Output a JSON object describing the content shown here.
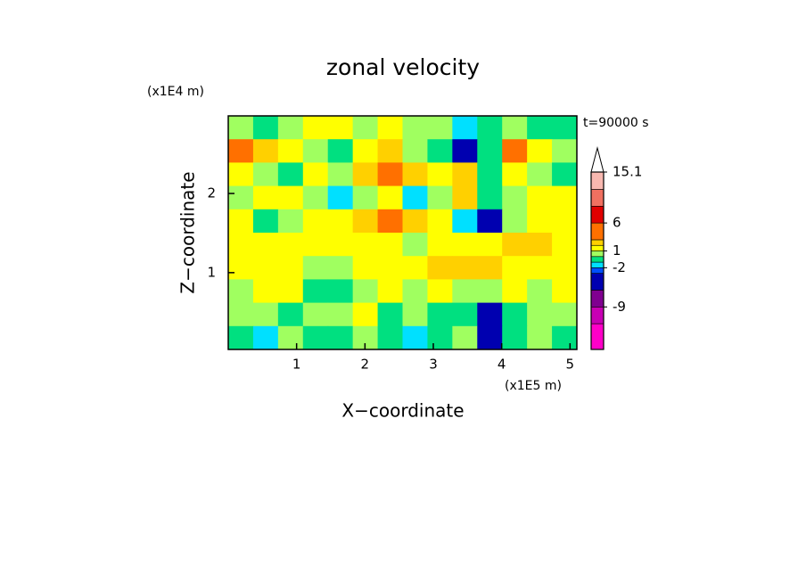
{
  "chart_data": {
    "type": "contour",
    "title": "zonal velocity",
    "x_label": "X−coordinate",
    "y_label": "Z−coordinate",
    "x_unit": "(x1E5 m)",
    "y_unit": "(x1E4 m)",
    "time_label": "t=90000 s",
    "xlim": [
      0,
      5.1
    ],
    "ylim": [
      0.03,
      2.98
    ],
    "xticks": [
      1,
      2,
      3,
      4,
      5
    ],
    "yticks": [
      1,
      2
    ],
    "z": [
      [
        0,
        -1,
        0,
        1,
        1,
        0.5,
        1,
        0.5,
        0,
        -1.5,
        -1,
        0,
        -1,
        -1
      ],
      [
        3,
        2,
        1,
        0,
        -1,
        1,
        2,
        0.5,
        -1,
        -5,
        -1,
        3,
        1,
        0
      ],
      [
        1,
        0,
        -1,
        1,
        0,
        2,
        3,
        2,
        1,
        2.5,
        -1,
        1,
        0,
        -1
      ],
      [
        0,
        1,
        1,
        0,
        -1.5,
        0,
        1,
        -1.5,
        0,
        2,
        -1,
        0,
        1,
        1
      ],
      [
        1,
        -1,
        0,
        1,
        1,
        2.5,
        3,
        2,
        1,
        -2,
        -5,
        0,
        1,
        1
      ],
      [
        1,
        1,
        1,
        1,
        1,
        1,
        1,
        0,
        1,
        1,
        1,
        2,
        2,
        1
      ],
      [
        1,
        1,
        1,
        0,
        0,
        1,
        1,
        1,
        2,
        2,
        2,
        1,
        1,
        1
      ],
      [
        0,
        1,
        1,
        -0.5,
        -1,
        0,
        1,
        0,
        1,
        0,
        0,
        1,
        0,
        1
      ],
      [
        0,
        0,
        -1,
        0,
        0,
        1,
        -1,
        0,
        -1,
        -1,
        -5,
        -1,
        0,
        0
      ],
      [
        -1,
        -2,
        0,
        -1,
        -1,
        0,
        -1,
        -2,
        -1,
        0,
        -6,
        -1,
        0,
        -1
      ]
    ],
    "colorbar": {
      "lim": [
        -16.6,
        15.1
      ],
      "bounds": [
        -16.6,
        -12,
        -9,
        -6,
        -3,
        -2,
        -1,
        0,
        1,
        2,
        3,
        6,
        9,
        12,
        15.1
      ],
      "colors": [
        "#ff00c8",
        "#c800b4",
        "#800090",
        "#0000b0",
        "#0050ff",
        "#00e0ff",
        "#00e080",
        "#a0ff60",
        "#ffff00",
        "#ffd000",
        "#ff7000",
        "#e00000",
        "#f07060",
        "#f8b8b0"
      ],
      "ticks": [
        15.1,
        6,
        1,
        -2,
        -9
      ],
      "extend_top": true
    }
  }
}
